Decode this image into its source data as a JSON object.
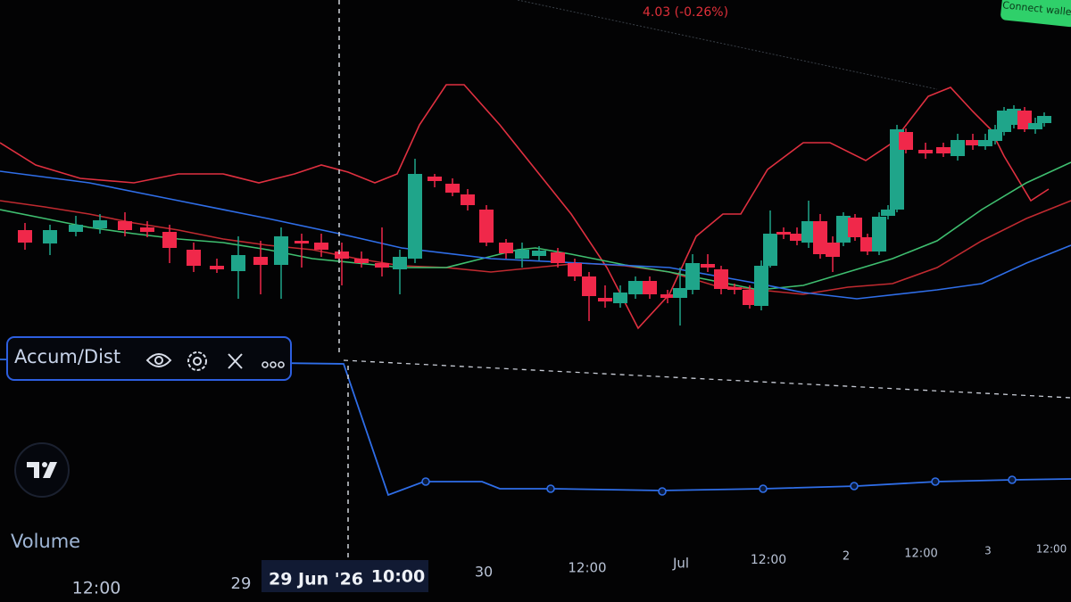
{
  "header": {
    "price_change": "4.03 (-0.26%)",
    "button": "Connect wallet"
  },
  "indicator": {
    "name": "Accum/Dist"
  },
  "volume_label": "Volume",
  "time_axis": {
    "labels": [
      "12:00",
      "29",
      "30",
      "12:00",
      "Jul",
      "12:00",
      "2",
      "12:00",
      "3",
      "12:00"
    ],
    "crosshair": {
      "date": "29 Jun '26",
      "time": "10:00"
    }
  }
}
